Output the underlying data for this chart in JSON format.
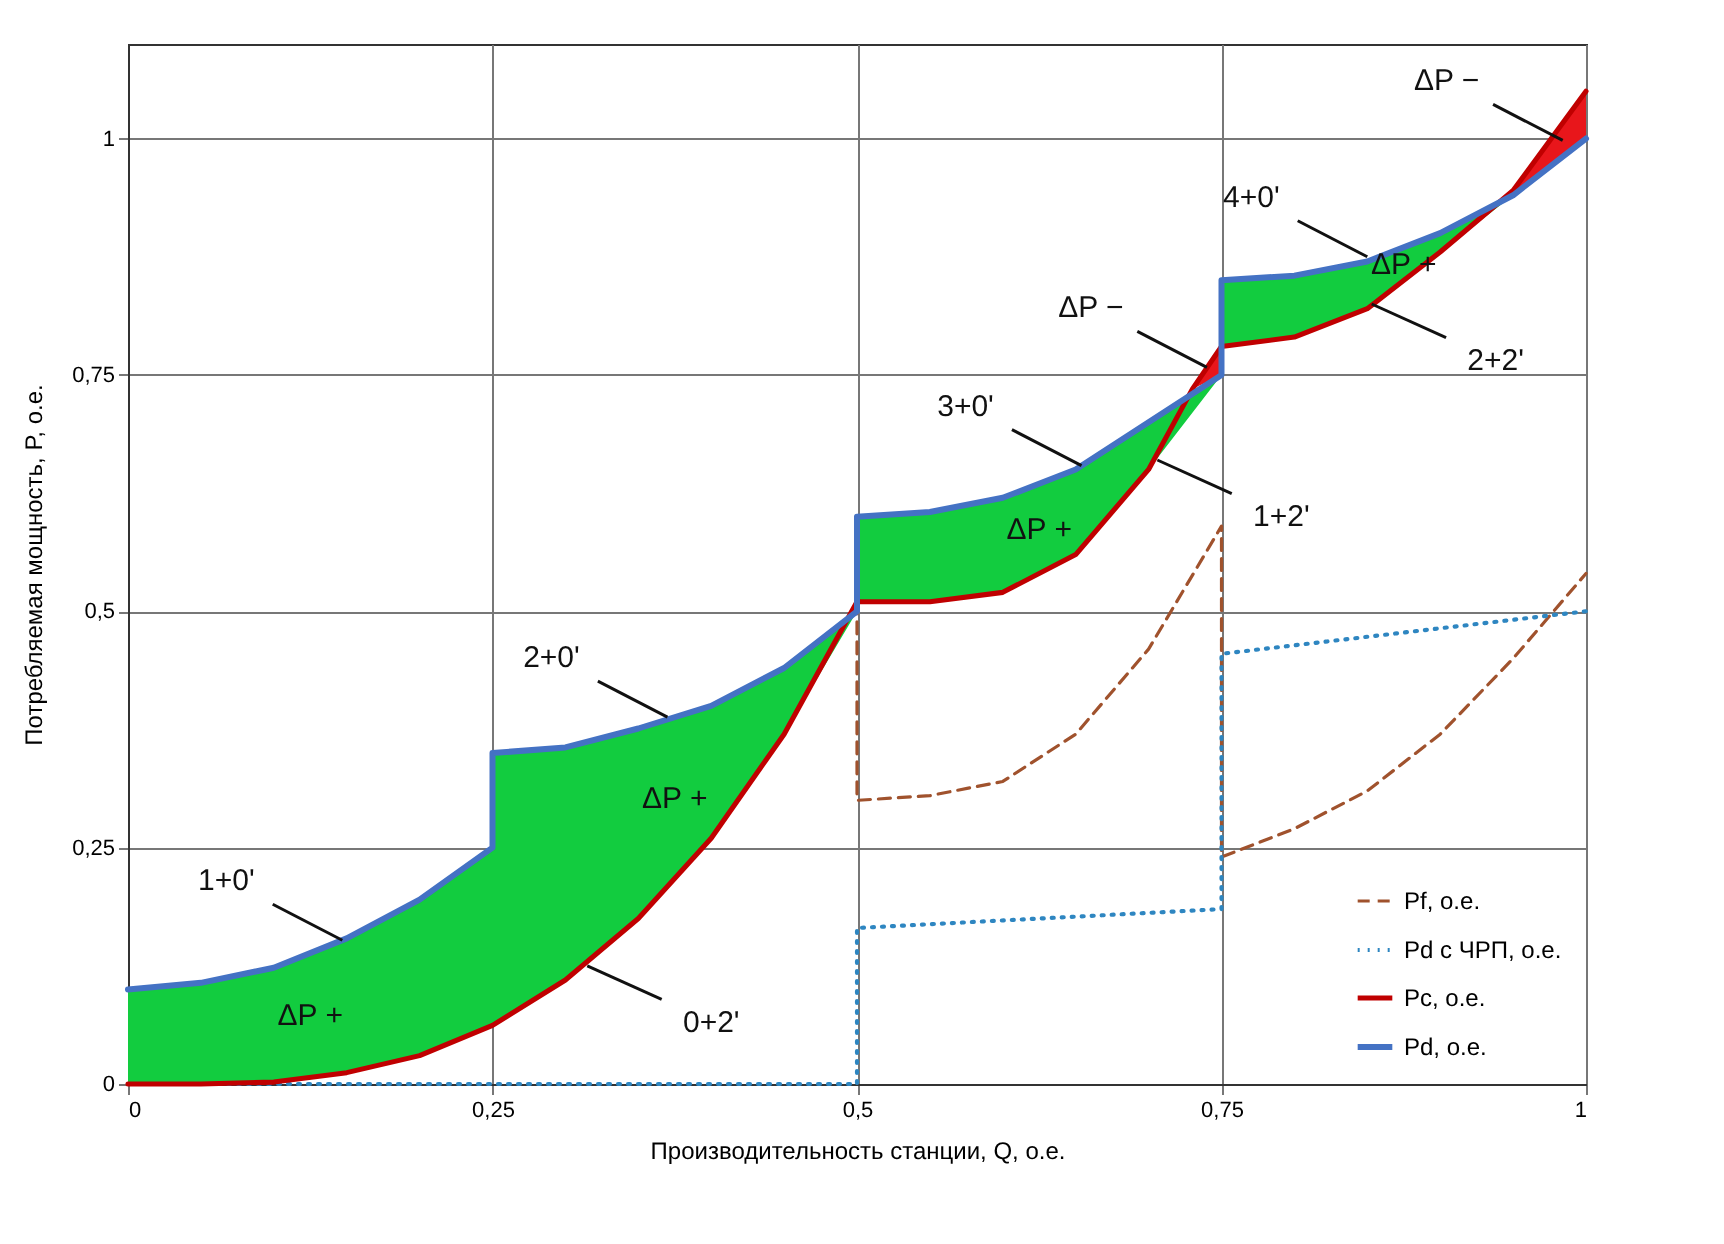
{
  "chart_data": {
    "type": "line",
    "xlabel": "Производительность станции, Q, о.е.",
    "ylabel": "Потребляемая мощность, P, о.е.",
    "xlim": [
      0,
      1
    ],
    "ylim": [
      0,
      1.1
    ],
    "xticks": [
      {
        "value": 0,
        "label": "0"
      },
      {
        "value": 0.25,
        "label": "0,25"
      },
      {
        "value": 0.5,
        "label": "0,5"
      },
      {
        "value": 0.75,
        "label": "0,75"
      },
      {
        "value": 1,
        "label": "1"
      }
    ],
    "yticks": [
      {
        "value": 0,
        "label": "0"
      },
      {
        "value": 0.25,
        "label": "0,25"
      },
      {
        "value": 0.5,
        "label": "0,5"
      },
      {
        "value": 0.75,
        "label": "0,75"
      },
      {
        "value": 1,
        "label": "1"
      }
    ],
    "grid": true,
    "legend": "bottom right",
    "series": [
      {
        "name": "Pf, о.е.",
        "color": "#a0522d",
        "line_style": "dashed",
        "x": [
          0.5,
          0.5,
          0.55,
          0.6,
          0.65,
          0.7,
          0.75,
          0.75,
          0.8,
          0.85,
          0.9,
          0.95,
          1
        ],
        "values": [
          0.51,
          0.3,
          0.305,
          0.32,
          0.37,
          0.46,
          0.59,
          0.24,
          0.27,
          0.31,
          0.37,
          0.45,
          0.54
        ]
      },
      {
        "name": "Pd с ЧРП, о.е.",
        "color": "#2e86c1",
        "line_style": "dotted",
        "x": [
          0,
          0.5,
          0.5,
          0.75,
          0.75,
          1
        ],
        "values": [
          0,
          0,
          0.165,
          0.185,
          0.455,
          0.5
        ]
      },
      {
        "name": "Pc, о.е.",
        "color": "#c00000",
        "line_style": "solid",
        "x": [
          0,
          0.05,
          0.1,
          0.15,
          0.2,
          0.25,
          0.3,
          0.35,
          0.4,
          0.45,
          0.5,
          0.55,
          0.6,
          0.65,
          0.7,
          0.73,
          0.75,
          0.8,
          0.85,
          0.9,
          0.95,
          1
        ],
        "values": [
          0,
          0,
          0.002,
          0.012,
          0.03,
          0.062,
          0.11,
          0.175,
          0.26,
          0.37,
          0.51,
          0.51,
          0.52,
          0.56,
          0.65,
          0.735,
          0.78,
          0.79,
          0.82,
          0.88,
          0.945,
          1.05
        ],
        "lower": [
          null,
          null,
          null,
          null,
          null,
          null,
          null,
          null,
          null,
          null,
          null,
          null,
          null,
          null,
          null,
          0.735,
          0.75,
          null,
          null,
          null,
          0.94,
          1
        ],
        "upper": [
          null,
          null,
          null,
          null,
          null,
          null,
          null,
          null,
          null,
          null,
          null,
          null,
          null,
          null,
          null,
          0.735,
          0.78,
          null,
          null,
          null,
          0.945,
          1.05
        ]
      },
      {
        "name": "Pd, о.е.",
        "color": "#4472c4",
        "line_style": "solid",
        "x": [
          0,
          0.05,
          0.1,
          0.15,
          0.2,
          0.25,
          0.25,
          0.3,
          0.35,
          0.4,
          0.45,
          0.5,
          0.5,
          0.55,
          0.6,
          0.65,
          0.7,
          0.75,
          0.75,
          0.8,
          0.85,
          0.9,
          0.95,
          1
        ],
        "values": [
          0.1,
          0.107,
          0.123,
          0.154,
          0.195,
          0.25,
          0.35,
          0.356,
          0.376,
          0.4,
          0.44,
          0.5,
          0.6,
          0.605,
          0.62,
          0.65,
          0.7,
          0.75,
          0.85,
          0.855,
          0.87,
          0.9,
          0.94,
          1
        ],
        "lower": [
          0,
          0,
          0.002,
          0.012,
          0.03,
          0.062,
          0.062,
          0.11,
          0.175,
          0.26,
          0.37,
          0.5,
          0.51,
          0.51,
          0.52,
          0.56,
          0.65,
          0.75,
          0.78,
          0.79,
          0.82,
          0.88,
          0.94,
          1
        ],
        "upper": [
          0.1,
          0.107,
          0.123,
          0.154,
          0.195,
          0.25,
          0.35,
          0.356,
          0.376,
          0.4,
          0.44,
          0.5,
          0.6,
          0.605,
          0.62,
          0.65,
          0.7,
          0.75,
          0.85,
          0.855,
          0.87,
          0.9,
          0.94,
          1
        ]
      }
    ],
    "annotations": [
      {
        "text": "1+0'",
        "x": 0.147,
        "y": 0.152
      },
      "ΔP +",
      {
        "text": "2+0'",
        "x": 0.37,
        "y": 0.388
      },
      "ΔP +",
      {
        "text": "0+2'",
        "x": 0.315,
        "y": 0.125
      },
      {
        "text": "3+0'",
        "x": 0.654,
        "y": 0.654
      },
      "ΔP +",
      {
        "text": "1+2'",
        "x": 0.706,
        "y": 0.66
      },
      {
        "text": "ΔP −",
        "x": 0.74,
        "y": 0.758
      },
      {
        "text": "4+0'",
        "x": 0.85,
        "y": 0.875
      },
      "ΔP +",
      {
        "text": "2+2'",
        "x": 0.853,
        "y": 0.825
      },
      {
        "text": "ΔP −",
        "x": 0.984,
        "y": 0.998
      }
    ]
  }
}
